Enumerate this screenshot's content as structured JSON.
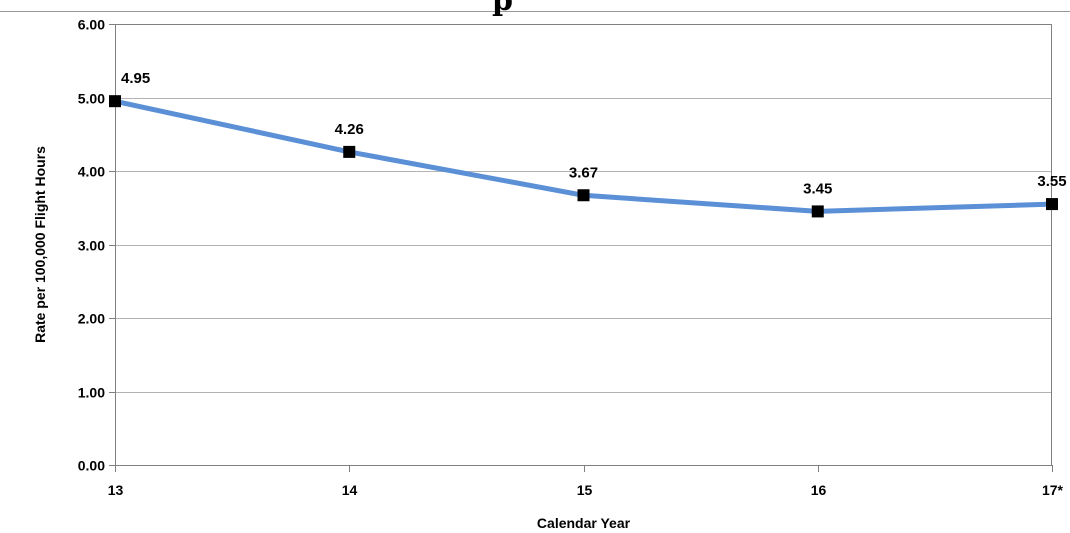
{
  "chart_data": {
    "type": "line",
    "title": "",
    "xlabel": "Calendar Year",
    "ylabel": "Rate per 100,000 Flight Hours",
    "categories": [
      "13",
      "14",
      "15",
      "16",
      "17*"
    ],
    "series": [
      {
        "values": [
          4.95,
          4.26,
          3.67,
          3.45,
          3.55
        ],
        "data_labels": [
          "4.95",
          "4.26",
          "3.67",
          "3.45",
          "3.55"
        ]
      }
    ],
    "ylim": [
      0,
      6
    ],
    "y_ticks": [
      "0.00",
      "1.00",
      "2.00",
      "3.00",
      "4.00",
      "5.00",
      "6.00"
    ],
    "y_tick_values": [
      0,
      1,
      2,
      3,
      4,
      5,
      6
    ],
    "grid": true,
    "legend": "none",
    "colors": {
      "line": "#5b8fd6",
      "marker": "#000000",
      "grid": "#b3b3b3",
      "axis": "#808080"
    },
    "marker": "square"
  }
}
